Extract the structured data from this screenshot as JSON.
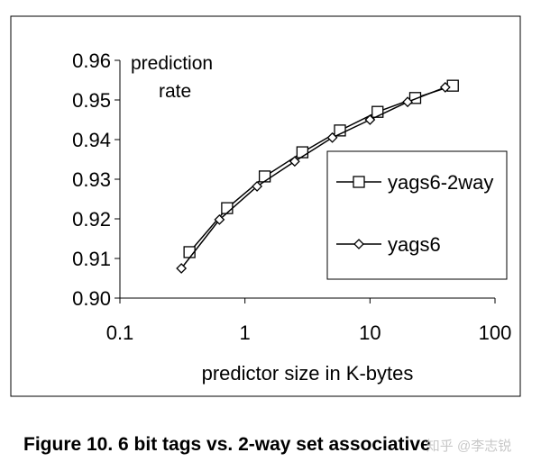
{
  "caption": "Figure 10. 6 bit tags vs. 2-way set associative",
  "watermark": "知乎 @李志锐",
  "chart_data": {
    "type": "line",
    "title": "",
    "xlabel": "predictor size in K-bytes",
    "ylabel_line1": "prediction",
    "ylabel_line2": "rate",
    "xscale": "log",
    "xlim": [
      0.1,
      100
    ],
    "ylim": [
      0.9,
      0.96
    ],
    "xticks": [
      0.1,
      1,
      10,
      100
    ],
    "xtick_labels": [
      "0.1",
      "1",
      "10",
      "100"
    ],
    "yticks": [
      0.9,
      0.91,
      0.92,
      0.93,
      0.94,
      0.95,
      0.96
    ],
    "ytick_labels": [
      "0.90",
      "0.91",
      "0.92",
      "0.93",
      "0.94",
      "0.95",
      "0.96"
    ],
    "grid": false,
    "legend_position": "right",
    "series": [
      {
        "name": "yags6-2way",
        "marker": "square",
        "x": [
          0.36,
          0.72,
          1.44,
          2.88,
          5.75,
          11.5,
          23,
          46
        ],
        "y": [
          0.9116,
          0.9227,
          0.9307,
          0.9368,
          0.9423,
          0.947,
          0.9505,
          0.9536
        ]
      },
      {
        "name": "yags6",
        "marker": "diamond",
        "x": [
          0.31,
          0.625,
          1.25,
          2.5,
          5,
          10,
          20,
          40
        ],
        "y": [
          0.9075,
          0.9198,
          0.9282,
          0.9345,
          0.9405,
          0.945,
          0.9495,
          0.9532
        ]
      }
    ]
  }
}
